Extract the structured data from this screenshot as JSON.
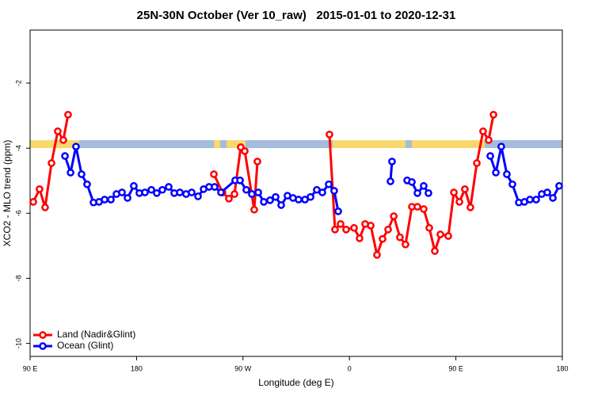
{
  "chart_data": {
    "type": "line",
    "title": "25N-30N October (Ver 10_raw)   2015-01-01 to 2020-12-31",
    "x_label": "Longitude (deg E)",
    "y_label": "XCO2 - MLO trend (ppm)",
    "xlim": [
      90,
      540
    ],
    "ylim": [
      -10.4,
      -0.37
    ],
    "xticks": [
      {
        "value": 90,
        "label": "90 E"
      },
      180,
      {
        "value": 270,
        "label": "90 W"
      },
      {
        "value": 360,
        "label": "0"
      },
      {
        "value": 450,
        "label": "90 E"
      },
      {
        "value": 540,
        "label": "180"
      }
    ],
    "yticks": [
      -2,
      -4,
      -6,
      -8,
      -10
    ],
    "legend": "bottom-left",
    "series": [
      {
        "name": "Land (Nadir&Glint)",
        "color": "#ff0000",
        "x": [
          92.7,
          98,
          102.7,
          108.1,
          113.4,
          118.1,
          122.1,
          null,
          245.4,
          252.7,
          258.1,
          262.8,
          268.1,
          271.5,
          279.5,
          282.2,
          null,
          343.1,
          347.8,
          352.5,
          357.2,
          363.9,
          368.6,
          373.3,
          378,
          383.3,
          388,
          392.7,
          397.5,
          402.7,
          407.4,
          412.8,
          417.5,
          422.8,
          427.5,
          432.2,
          436.9,
          443.6,
          448.3,
          453,
          457.6,
          462.3,
          467.7,
          473,
          477.7,
          481.8
        ],
        "values": [
          -5.65,
          -5.26,
          -5.82,
          -4.46,
          -3.48,
          -3.75,
          -2.97,
          null,
          -4.8,
          -5.36,
          -5.55,
          -5.41,
          -3.97,
          -4.09,
          -5.89,
          -4.41,
          null,
          -3.58,
          -6.5,
          -6.33,
          -6.5,
          -6.45,
          -6.77,
          -6.33,
          -6.38,
          -7.28,
          -6.79,
          -6.5,
          -6.09,
          -6.74,
          -6.96,
          -5.8,
          -5.8,
          -5.87,
          -6.45,
          -7.16,
          -6.65,
          -6.7,
          -5.36,
          -5.65,
          -5.26,
          -5.82,
          -4.46,
          -3.48,
          -3.75,
          -2.97
        ]
      },
      {
        "name": "Ocean (Glint)",
        "color": "#0000ff",
        "x": [
          119.5,
          124.2,
          128.8,
          133.5,
          138.2,
          143.6,
          148.3,
          153,
          158.3,
          163,
          167.7,
          172.4,
          177.7,
          182.4,
          187.1,
          192.5,
          197.1,
          201.8,
          207.2,
          211.9,
          216.6,
          221.9,
          226.6,
          232,
          236.7,
          241.3,
          246,
          251.4,
          263.4,
          267.5,
          272.8,
          277.5,
          282.9,
          287.6,
          292.9,
          297.6,
          302.3,
          307.6,
          312.3,
          317,
          322.4,
          327.1,
          332.4,
          337.1,
          342.5,
          347.1,
          350.5,
          null,
          394.7,
          396,
          null,
          408.8,
          412.8,
          417.5,
          422.8,
          426.8,
          null,
          479.1,
          483.8,
          488.4,
          493.1,
          497.8,
          503.2,
          507.9,
          512.6,
          517.9,
          522.6,
          527.3,
          532,
          537.3
        ],
        "values": [
          -4.24,
          -4.75,
          -3.95,
          -4.8,
          -5.11,
          -5.67,
          -5.65,
          -5.58,
          -5.58,
          -5.41,
          -5.36,
          -5.53,
          -5.16,
          -5.38,
          -5.36,
          -5.28,
          -5.38,
          -5.28,
          -5.19,
          -5.38,
          -5.36,
          -5.41,
          -5.36,
          -5.48,
          -5.26,
          -5.19,
          -5.19,
          -5.36,
          -4.99,
          -4.99,
          -5.28,
          -5.41,
          -5.36,
          -5.65,
          -5.6,
          -5.5,
          -5.75,
          -5.46,
          -5.53,
          -5.58,
          -5.58,
          -5.5,
          -5.28,
          -5.36,
          -5.11,
          -5.31,
          -5.94,
          null,
          -5.02,
          -4.41,
          null,
          -4.99,
          -5.04,
          -5.38,
          -5.16,
          -5.38,
          null,
          -4.24,
          -4.75,
          -3.95,
          -4.8,
          -5.11,
          -5.67,
          -5.65,
          -5.58,
          -5.58,
          -5.41,
          -5.36,
          -5.53,
          -5.16
        ]
      }
    ]
  }
}
